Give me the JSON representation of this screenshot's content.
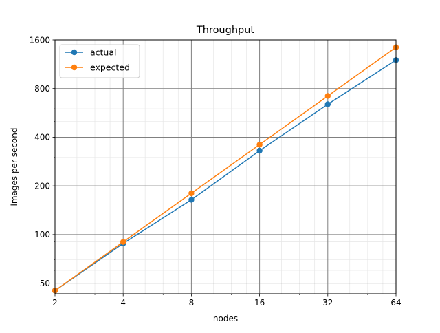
{
  "chart_data": {
    "type": "line",
    "title": "Throughput",
    "xlabel": "nodes",
    "ylabel": "images per second",
    "x_scale": "log2",
    "y_scale": "log",
    "xlim": [
      2,
      64
    ],
    "ylim": [
      43,
      1600
    ],
    "x": [
      2,
      4,
      8,
      16,
      32,
      64
    ],
    "x_ticks": [
      "2",
      "4",
      "8",
      "16",
      "32",
      "64"
    ],
    "y_ticks": [
      50,
      100,
      200,
      400,
      800,
      1600
    ],
    "y_tick_labels": [
      "50",
      "100",
      "200",
      "400",
      "800",
      "1600"
    ],
    "grid": "major and minor",
    "legend": "upper-left",
    "series": [
      {
        "name": "actual",
        "color": "#1f77b4",
        "marker": "circle",
        "values": [
          45,
          88,
          164,
          330,
          640,
          1200
        ]
      },
      {
        "name": "expected",
        "color": "#ff7f0e",
        "marker": "circle",
        "values": [
          45,
          90,
          180,
          360,
          720,
          1440
        ]
      }
    ]
  }
}
